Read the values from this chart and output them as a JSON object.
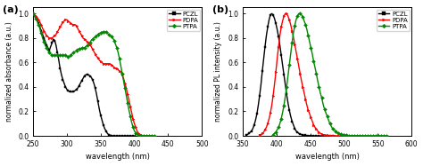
{
  "panel_a": {
    "xlabel": "wavelength (nm)",
    "ylabel": "normalized absorbance (a.u.)",
    "xlim": [
      250,
      500
    ],
    "ylim": [
      0.0,
      1.05
    ],
    "xticks": [
      250,
      300,
      350,
      400,
      450,
      500
    ],
    "yticks": [
      0.0,
      0.2,
      0.4,
      0.6,
      0.8,
      1.0
    ],
    "series": [
      {
        "name": "PCZL",
        "color": "#000000",
        "marker": "s",
        "x": [
          250,
          252,
          254,
          256,
          258,
          260,
          262,
          264,
          266,
          268,
          270,
          272,
          274,
          276,
          278,
          280,
          282,
          284,
          286,
          288,
          290,
          292,
          294,
          296,
          298,
          300,
          302,
          304,
          306,
          308,
          310,
          312,
          314,
          316,
          318,
          320,
          322,
          324,
          326,
          328,
          330,
          332,
          334,
          336,
          338,
          340,
          342,
          344,
          346,
          348,
          350,
          352,
          354,
          356,
          358,
          360,
          362,
          364,
          366,
          368,
          370,
          372,
          374,
          376,
          378,
          380,
          382,
          384,
          386,
          388,
          390,
          392,
          394,
          396,
          398,
          400
        ],
        "y": [
          1.0,
          0.99,
          0.97,
          0.95,
          0.92,
          0.89,
          0.86,
          0.83,
          0.8,
          0.77,
          0.74,
          0.72,
          0.7,
          0.73,
          0.76,
          0.79,
          0.78,
          0.74,
          0.68,
          0.62,
          0.55,
          0.5,
          0.46,
          0.43,
          0.4,
          0.38,
          0.37,
          0.36,
          0.36,
          0.36,
          0.36,
          0.37,
          0.38,
          0.39,
          0.41,
          0.43,
          0.45,
          0.47,
          0.49,
          0.5,
          0.5,
          0.5,
          0.49,
          0.48,
          0.46,
          0.43,
          0.39,
          0.34,
          0.28,
          0.22,
          0.17,
          0.13,
          0.09,
          0.06,
          0.04,
          0.02,
          0.01,
          0.006,
          0.003,
          0.001,
          0.0,
          0.0,
          0.0,
          0.0,
          0.0,
          0.0,
          0.0,
          0.0,
          0.0,
          0.0,
          0.0,
          0.0,
          0.0,
          0.0,
          0.0,
          0.0
        ]
      },
      {
        "name": "PDPA",
        "color": "#ff0000",
        "marker": ">",
        "x": [
          250,
          252,
          254,
          256,
          258,
          260,
          262,
          264,
          266,
          268,
          270,
          272,
          274,
          276,
          278,
          280,
          282,
          284,
          286,
          288,
          290,
          292,
          294,
          296,
          298,
          300,
          302,
          304,
          306,
          308,
          310,
          312,
          314,
          316,
          318,
          320,
          322,
          324,
          326,
          328,
          330,
          332,
          334,
          336,
          338,
          340,
          342,
          344,
          346,
          348,
          350,
          352,
          354,
          356,
          358,
          360,
          362,
          364,
          366,
          368,
          370,
          372,
          374,
          376,
          378,
          380,
          382,
          384,
          386,
          388,
          390,
          392,
          394,
          396,
          398,
          400,
          402,
          404,
          406,
          408,
          410,
          412,
          414,
          416,
          418,
          420,
          422,
          424,
          426
        ],
        "y": [
          1.0,
          0.99,
          0.98,
          0.97,
          0.95,
          0.93,
          0.91,
          0.88,
          0.86,
          0.84,
          0.82,
          0.81,
          0.8,
          0.8,
          0.8,
          0.81,
          0.82,
          0.83,
          0.85,
          0.87,
          0.89,
          0.91,
          0.93,
          0.94,
          0.95,
          0.95,
          0.94,
          0.93,
          0.92,
          0.91,
          0.91,
          0.91,
          0.9,
          0.88,
          0.86,
          0.84,
          0.82,
          0.8,
          0.79,
          0.78,
          0.77,
          0.76,
          0.75,
          0.73,
          0.71,
          0.69,
          0.67,
          0.65,
          0.64,
          0.62,
          0.61,
          0.6,
          0.59,
          0.59,
          0.59,
          0.59,
          0.59,
          0.59,
          0.58,
          0.57,
          0.56,
          0.55,
          0.55,
          0.54,
          0.53,
          0.52,
          0.5,
          0.47,
          0.43,
          0.39,
          0.34,
          0.29,
          0.24,
          0.19,
          0.14,
          0.1,
          0.07,
          0.04,
          0.02,
          0.01,
          0.006,
          0.003,
          0.001,
          0.0,
          0.0,
          0.0,
          0.0,
          0.0,
          0.0
        ]
      },
      {
        "name": "PTPA",
        "color": "#008800",
        "marker": "D",
        "x": [
          250,
          252,
          254,
          256,
          258,
          260,
          262,
          264,
          266,
          268,
          270,
          272,
          274,
          276,
          278,
          280,
          282,
          284,
          286,
          288,
          290,
          292,
          294,
          296,
          298,
          300,
          302,
          304,
          306,
          308,
          310,
          312,
          314,
          316,
          318,
          320,
          322,
          324,
          326,
          328,
          330,
          332,
          334,
          336,
          338,
          340,
          342,
          344,
          346,
          348,
          350,
          352,
          354,
          356,
          358,
          360,
          362,
          364,
          366,
          368,
          370,
          372,
          374,
          376,
          378,
          380,
          382,
          384,
          386,
          388,
          390,
          392,
          394,
          396,
          398,
          400,
          402,
          404,
          406,
          408,
          410,
          412,
          414,
          416,
          418,
          420,
          422,
          424,
          426,
          428,
          430
        ],
        "y": [
          1.0,
          0.98,
          0.96,
          0.94,
          0.91,
          0.88,
          0.84,
          0.8,
          0.77,
          0.74,
          0.72,
          0.7,
          0.68,
          0.67,
          0.66,
          0.66,
          0.66,
          0.66,
          0.66,
          0.66,
          0.66,
          0.66,
          0.66,
          0.66,
          0.66,
          0.65,
          0.65,
          0.65,
          0.66,
          0.67,
          0.68,
          0.69,
          0.7,
          0.71,
          0.71,
          0.71,
          0.72,
          0.72,
          0.72,
          0.73,
          0.74,
          0.75,
          0.76,
          0.78,
          0.79,
          0.8,
          0.81,
          0.82,
          0.83,
          0.84,
          0.84,
          0.85,
          0.85,
          0.85,
          0.85,
          0.84,
          0.83,
          0.82,
          0.81,
          0.8,
          0.78,
          0.75,
          0.72,
          0.68,
          0.63,
          0.57,
          0.51,
          0.45,
          0.39,
          0.33,
          0.27,
          0.21,
          0.16,
          0.11,
          0.07,
          0.04,
          0.025,
          0.015,
          0.008,
          0.004,
          0.002,
          0.001,
          0.0,
          0.0,
          0.0,
          0.0,
          0.0,
          0.0,
          0.0,
          0.0,
          0.0
        ]
      }
    ]
  },
  "panel_b": {
    "xlabel": "wavelength (nm)",
    "ylabel": "normalized PL intensity (a.u.)",
    "xlim": [
      350,
      600
    ],
    "ylim": [
      0.0,
      1.05
    ],
    "xticks": [
      350,
      400,
      450,
      500,
      550,
      600
    ],
    "yticks": [
      0.0,
      0.2,
      0.4,
      0.6,
      0.8,
      1.0
    ],
    "series": [
      {
        "name": "PCZL",
        "color": "#000000",
        "marker": "s",
        "x": [
          355,
          357,
          359,
          361,
          363,
          365,
          367,
          369,
          371,
          373,
          375,
          377,
          379,
          381,
          383,
          385,
          387,
          389,
          391,
          393,
          395,
          397,
          399,
          401,
          403,
          405,
          407,
          409,
          411,
          413,
          415,
          417,
          419,
          421,
          423,
          425,
          427,
          429,
          431,
          433,
          435,
          437,
          439,
          441,
          443,
          445,
          447,
          449,
          451,
          453,
          455,
          457,
          459,
          461,
          463,
          465,
          467,
          469,
          471,
          473,
          475,
          477,
          479,
          481,
          483,
          485
        ],
        "y": [
          0.01,
          0.01,
          0.02,
          0.03,
          0.04,
          0.06,
          0.09,
          0.13,
          0.18,
          0.25,
          0.33,
          0.42,
          0.53,
          0.63,
          0.73,
          0.82,
          0.89,
          0.95,
          0.99,
          1.0,
          0.99,
          0.96,
          0.92,
          0.87,
          0.81,
          0.74,
          0.66,
          0.58,
          0.5,
          0.42,
          0.34,
          0.27,
          0.21,
          0.16,
          0.12,
          0.09,
          0.06,
          0.04,
          0.03,
          0.02,
          0.015,
          0.01,
          0.008,
          0.005,
          0.004,
          0.003,
          0.002,
          0.001,
          0.001,
          0.001,
          0.0,
          0.0,
          0.0,
          0.0,
          0.0,
          0.0,
          0.0,
          0.0,
          0.0,
          0.0,
          0.0,
          0.0,
          0.0,
          0.0,
          0.0,
          0.0
        ]
      },
      {
        "name": "PDPA",
        "color": "#ff0000",
        "marker": ">",
        "x": [
          375,
          377,
          379,
          381,
          383,
          385,
          387,
          389,
          391,
          393,
          395,
          397,
          399,
          401,
          403,
          405,
          407,
          409,
          411,
          413,
          415,
          417,
          419,
          421,
          423,
          425,
          427,
          429,
          431,
          433,
          435,
          437,
          439,
          441,
          443,
          445,
          447,
          449,
          451,
          453,
          455,
          457,
          459,
          461,
          463,
          465,
          467,
          469,
          471,
          473,
          475,
          477,
          479,
          481,
          483,
          485,
          487,
          489,
          491,
          493,
          495,
          497,
          499,
          501,
          503,
          505,
          507,
          509,
          511,
          513,
          515,
          517,
          519,
          521,
          523,
          525
        ],
        "y": [
          0.01,
          0.01,
          0.02,
          0.03,
          0.05,
          0.07,
          0.1,
          0.14,
          0.19,
          0.25,
          0.33,
          0.42,
          0.52,
          0.63,
          0.73,
          0.82,
          0.89,
          0.94,
          0.98,
          1.0,
          1.0,
          0.98,
          0.95,
          0.91,
          0.86,
          0.81,
          0.75,
          0.69,
          0.63,
          0.57,
          0.51,
          0.45,
          0.4,
          0.35,
          0.3,
          0.25,
          0.21,
          0.18,
          0.15,
          0.12,
          0.09,
          0.07,
          0.055,
          0.04,
          0.03,
          0.02,
          0.015,
          0.01,
          0.008,
          0.005,
          0.004,
          0.003,
          0.002,
          0.001,
          0.001,
          0.0,
          0.0,
          0.0,
          0.0,
          0.0,
          0.0,
          0.0,
          0.0,
          0.0,
          0.0,
          0.0,
          0.0,
          0.0,
          0.0,
          0.0,
          0.0,
          0.0,
          0.0,
          0.0,
          0.0,
          0.0
        ]
      },
      {
        "name": "PTPA",
        "color": "#008800",
        "marker": "D",
        "x": [
          395,
          397,
          399,
          401,
          403,
          405,
          407,
          409,
          411,
          413,
          415,
          417,
          419,
          421,
          423,
          425,
          427,
          429,
          431,
          433,
          435,
          437,
          439,
          441,
          443,
          445,
          447,
          449,
          451,
          453,
          455,
          457,
          459,
          461,
          463,
          465,
          467,
          469,
          471,
          473,
          475,
          477,
          479,
          481,
          483,
          485,
          487,
          489,
          491,
          493,
          495,
          497,
          499,
          501,
          503,
          505,
          507,
          509,
          511,
          513,
          515,
          517,
          519,
          521,
          523,
          525,
          527,
          529,
          531,
          533,
          535,
          537,
          539,
          541,
          543,
          545,
          547,
          549,
          551,
          553,
          555,
          557,
          559,
          561,
          563,
          565
        ],
        "y": [
          0.01,
          0.02,
          0.03,
          0.05,
          0.07,
          0.1,
          0.14,
          0.19,
          0.25,
          0.32,
          0.4,
          0.49,
          0.58,
          0.67,
          0.76,
          0.84,
          0.9,
          0.95,
          0.98,
          1.0,
          1.0,
          0.99,
          0.97,
          0.94,
          0.91,
          0.87,
          0.82,
          0.77,
          0.72,
          0.67,
          0.61,
          0.56,
          0.51,
          0.45,
          0.4,
          0.35,
          0.31,
          0.26,
          0.22,
          0.19,
          0.16,
          0.13,
          0.1,
          0.08,
          0.06,
          0.05,
          0.04,
          0.03,
          0.025,
          0.02,
          0.015,
          0.012,
          0.009,
          0.007,
          0.005,
          0.004,
          0.003,
          0.002,
          0.002,
          0.001,
          0.001,
          0.001,
          0.0,
          0.0,
          0.0,
          0.0,
          0.0,
          0.0,
          0.0,
          0.0,
          0.0,
          0.0,
          0.0,
          0.0,
          0.0,
          0.0,
          0.0,
          0.0,
          0.0,
          0.0,
          0.0,
          0.0,
          0.0,
          0.0,
          0.0,
          0.0
        ]
      }
    ]
  },
  "label_a": "(a)",
  "label_b": "(b)",
  "linewidth": 1.0,
  "marker_size": 2.0,
  "marker_every": 2
}
